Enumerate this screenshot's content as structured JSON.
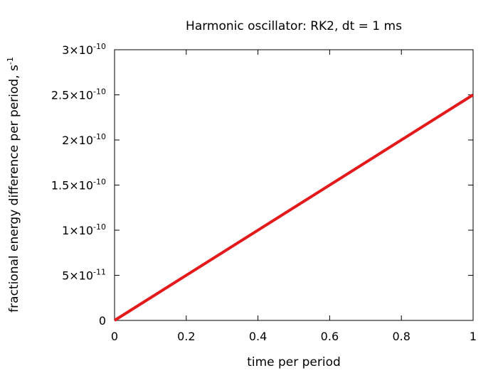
{
  "chart_data": {
    "type": "line",
    "title": "Harmonic oscillator: RK2, dt = 1 ms",
    "xlabel": "time per period",
    "ylabel": {
      "base": "fractional energy difference per period, s",
      "exponent": "-1"
    },
    "xlim": [
      0,
      1
    ],
    "ylim": [
      0,
      3e-10
    ],
    "x_ticks": [
      {
        "value": 0,
        "label": "0"
      },
      {
        "value": 0.2,
        "label": "0.2"
      },
      {
        "value": 0.4,
        "label": "0.4"
      },
      {
        "value": 0.6,
        "label": "0.6"
      },
      {
        "value": 0.8,
        "label": "0.8"
      },
      {
        "value": 1,
        "label": "1"
      }
    ],
    "y_ticks": [
      {
        "value": 0,
        "mantissa": "0",
        "exponent": ""
      },
      {
        "value": 5e-11,
        "mantissa": "5×10",
        "exponent": "-11"
      },
      {
        "value": 1e-10,
        "mantissa": "1×10",
        "exponent": "-10"
      },
      {
        "value": 1.5e-10,
        "mantissa": "1.5×10",
        "exponent": "-10"
      },
      {
        "value": 2e-10,
        "mantissa": "2×10",
        "exponent": "-10"
      },
      {
        "value": 2.5e-10,
        "mantissa": "2.5×10",
        "exponent": "-10"
      },
      {
        "value": 3e-10,
        "mantissa": "3×10",
        "exponent": "-10"
      }
    ],
    "grid": false,
    "series": [
      {
        "color": "#e31a1c",
        "x": [
          0,
          1
        ],
        "y": [
          0,
          2.5e-10
        ]
      }
    ]
  }
}
